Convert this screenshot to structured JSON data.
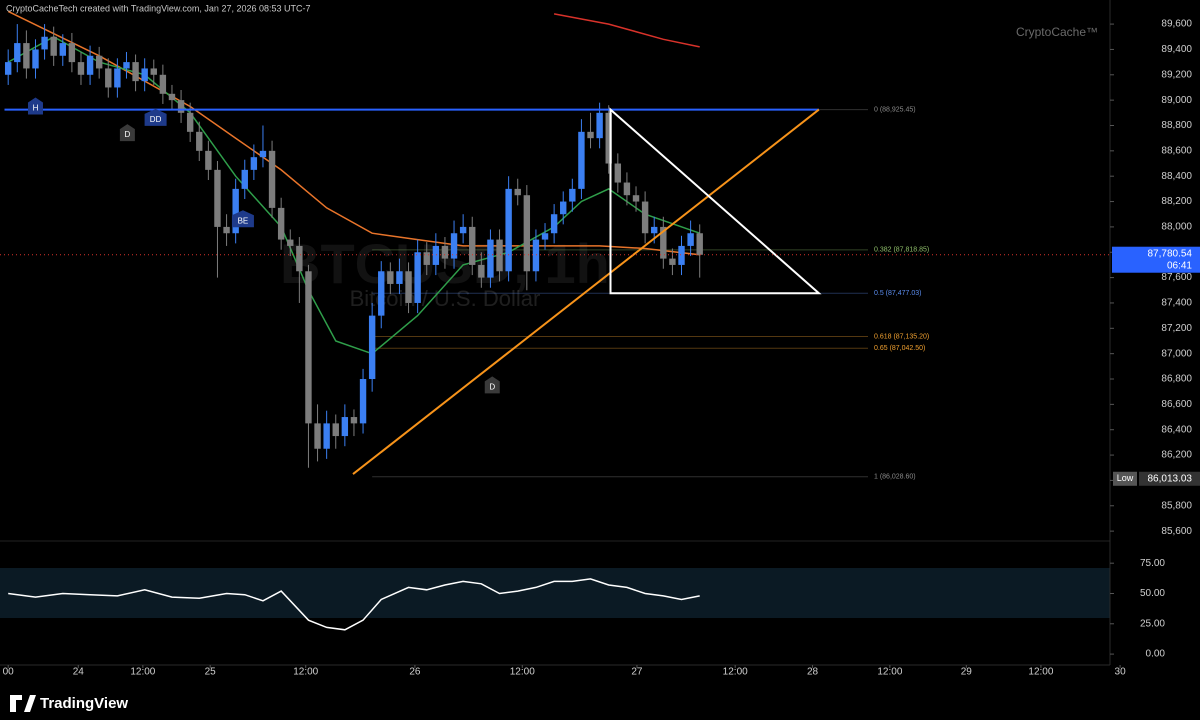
{
  "header": "CryptoCacheTech created with TradingView.com, Jan 27, 2026 08:53 UTC-7",
  "brand": "CryptoCache™",
  "watermark": "BTCUSD, 1h",
  "watermark_subtitle": "Bitcoin / U.S. Dollar",
  "footer_logo": "TradingView",
  "chart_data": [
    {
      "type": "candlestick",
      "up_color": "#3b7ff2",
      "down_color": "#7d7d7d",
      "xlim": [
        -0.9,
        123.4
      ],
      "ylim": [
        85530,
        89790
      ],
      "yticks": [
        {
          "value": 85600,
          "label": "85,600"
        },
        {
          "value": 85800,
          "label": "85,800"
        },
        {
          "value": 86000,
          "label": "86,000"
        },
        {
          "value": 86200,
          "label": "86,200"
        },
        {
          "value": 86400,
          "label": "86,400"
        },
        {
          "value": 86600,
          "label": "86,600"
        },
        {
          "value": 86800,
          "label": "86,800"
        },
        {
          "value": 87000,
          "label": "87,000"
        },
        {
          "value": 87200,
          "label": "87,200"
        },
        {
          "value": 87400,
          "label": "87,400"
        },
        {
          "value": 87600,
          "label": "87,600"
        },
        {
          "value": 87800,
          "label": "87,800"
        },
        {
          "value": 88000,
          "label": "88,000"
        },
        {
          "value": 88200,
          "label": "88,200"
        },
        {
          "value": 88400,
          "label": "88,400"
        },
        {
          "value": 88600,
          "label": "88,600"
        },
        {
          "value": 88800,
          "label": "88,800"
        },
        {
          "value": 89000,
          "label": "89,000"
        },
        {
          "value": 89200,
          "label": "89,200"
        },
        {
          "value": 89400,
          "label": "89,400"
        },
        {
          "value": 89600,
          "label": "89,600"
        }
      ],
      "open": [
        89200,
        89300,
        89450,
        89250,
        89400,
        89500,
        89350,
        89450,
        89300,
        89200,
        89350,
        89250,
        89100,
        89250,
        89300,
        89150,
        89250,
        89200,
        89050,
        89000,
        88900,
        88750,
        88600,
        88450,
        88000,
        87950,
        88300,
        88450,
        88550,
        88600,
        88150,
        87900,
        87850,
        87650,
        86450,
        86250,
        86450,
        86350,
        86500,
        86450,
        86800,
        87300,
        87650,
        87550,
        87650,
        87400,
        87800,
        87700,
        87850,
        87750,
        87950,
        88000,
        87700,
        87600,
        87900,
        87650,
        88300,
        88250,
        87650,
        87900,
        87950,
        88100,
        88200,
        88300,
        88750,
        88700,
        88900,
        88500,
        88350,
        88250,
        88200,
        87950,
        88000,
        87750,
        87700,
        87850,
        87950
      ],
      "high": [
        89400,
        89600,
        89550,
        89480,
        89600,
        89580,
        89520,
        89530,
        89380,
        89430,
        89420,
        89330,
        89330,
        89380,
        89360,
        89330,
        89320,
        89280,
        89120,
        89080,
        88980,
        88830,
        88680,
        88520,
        88100,
        88380,
        88530,
        88650,
        88800,
        88680,
        88230,
        87980,
        87920,
        87700,
        86600,
        86550,
        86520,
        86600,
        86560,
        86880,
        87400,
        87730,
        87720,
        87750,
        87720,
        87900,
        87880,
        87950,
        87920,
        88050,
        88100,
        88080,
        87800,
        87980,
        87980,
        88400,
        88380,
        88330,
        87980,
        88030,
        88180,
        88280,
        88380,
        88850,
        88900,
        88980,
        88960,
        88580,
        88430,
        88320,
        88280,
        88080,
        88080,
        87830,
        87930,
        88050,
        88020
      ],
      "low": [
        89120,
        89220,
        89170,
        89170,
        89320,
        89270,
        89270,
        89220,
        89120,
        89120,
        89170,
        89020,
        89020,
        89170,
        89070,
        89070,
        89120,
        88970,
        88920,
        88820,
        88670,
        88520,
        88370,
        87600,
        87850,
        87870,
        88220,
        88370,
        88470,
        88070,
        87820,
        87770,
        87400,
        86100,
        86150,
        86170,
        86250,
        86270,
        86350,
        86370,
        86700,
        87200,
        87470,
        87470,
        87320,
        87320,
        87620,
        87620,
        87670,
        87670,
        87870,
        87620,
        87520,
        87520,
        87570,
        87570,
        88170,
        87500,
        87570,
        87820,
        87870,
        88020,
        88120,
        88220,
        88620,
        88620,
        88420,
        88270,
        88170,
        88120,
        87870,
        87870,
        87670,
        87620,
        87620,
        87770,
        87600
      ],
      "close": [
        89300,
        89450,
        89250,
        89400,
        89500,
        89350,
        89450,
        89300,
        89200,
        89350,
        89250,
        89100,
        89250,
        89300,
        89150,
        89250,
        89200,
        89050,
        89000,
        88900,
        88750,
        88600,
        88450,
        88000,
        87950,
        88300,
        88450,
        88550,
        88600,
        88150,
        87900,
        87850,
        87650,
        86450,
        86250,
        86450,
        86350,
        86500,
        86450,
        86800,
        87300,
        87650,
        87550,
        87650,
        87400,
        87800,
        87700,
        87850,
        87750,
        87950,
        88000,
        87700,
        87600,
        87900,
        87650,
        88300,
        88250,
        87650,
        87900,
        87950,
        88100,
        88200,
        88300,
        88750,
        88700,
        88900,
        88500,
        88350,
        88250,
        88200,
        87950,
        88000,
        87750,
        87700,
        87850,
        87950,
        87780
      ],
      "lines": [
        {
          "color": "#e8742a",
          "x": [
            0,
            10,
            20,
            25,
            30,
            35,
            40,
            45,
            50,
            55,
            60,
            65,
            70,
            76
          ],
          "values": [
            89700,
            89350,
            88950,
            88700,
            88450,
            88150,
            87950,
            87900,
            87850,
            87850,
            87850,
            87850,
            87830,
            87780
          ]
        },
        {
          "color": "#2f9e4a",
          "x": [
            0,
            5,
            10,
            15,
            20,
            25,
            30,
            33,
            36,
            40,
            45,
            50,
            55,
            60,
            63,
            66,
            70,
            76
          ],
          "values": [
            89300,
            89500,
            89300,
            89200,
            88900,
            88400,
            88000,
            87500,
            87100,
            87000,
            87300,
            87700,
            87800,
            88000,
            88200,
            88300,
            88100,
            87950
          ]
        },
        {
          "color": "#d8322a",
          "x": [
            60,
            66,
            72,
            76
          ],
          "values": [
            89680,
            89600,
            89480,
            89420
          ]
        }
      ],
      "hline": {
        "color": "#2962ff",
        "x": [
          -0.4,
          89.1
        ],
        "values": [
          88925.45,
          88925.45
        ]
      },
      "trendline": {
        "color": "#f7931a",
        "x": [
          37.9,
          89.1
        ],
        "values": [
          86050,
          88925
        ]
      },
      "triangle": {
        "color": "#ffffff",
        "x": [
          66.2,
          89.1,
          66.2
        ],
        "values": [
          88925,
          87477,
          87477
        ]
      },
      "fib_levels": [
        {
          "label": "0 (88,925.45)",
          "value": 88925.45,
          "color": "#8a8a8a"
        },
        {
          "label": "0.382 (87,818.85)",
          "value": 87818.85,
          "color": "#8fbf6a"
        },
        {
          "label": "0.5 (87,477.03)",
          "value": 87477.03,
          "color": "#5b8def"
        },
        {
          "label": "0.618 (87,135.20)",
          "value": 87135.2,
          "color": "#f0a030"
        },
        {
          "label": "0.65 (87,042.50)",
          "value": 87042.5,
          "color": "#f0a030"
        },
        {
          "label": "1 (86,028.60)",
          "value": 86028.6,
          "color": "#8a8a8a"
        }
      ],
      "annotations": [
        {
          "label": "H",
          "x": 3,
          "value": 88950,
          "color": "#1e3a8a"
        },
        {
          "label": "DD",
          "x": 16.2,
          "value": 88860,
          "color": "#1e3a8a"
        },
        {
          "label": "D",
          "x": 13.1,
          "value": 88740,
          "color": "#3a3a3a"
        },
        {
          "label": "BE",
          "x": 25.8,
          "value": 88060,
          "color": "#1e3a8a"
        },
        {
          "label": "D",
          "x": 53.2,
          "value": 86750,
          "color": "#3a3a3a"
        }
      ],
      "last_price": {
        "value": 87780.54,
        "label": "87,780.54",
        "countdown": "06:41",
        "color": "#2962ff"
      },
      "low_badge": {
        "title": "Low",
        "value": 86013.03,
        "label": "86,013.03"
      }
    },
    {
      "type": "line",
      "xlim": [
        -0.9,
        123.4
      ],
      "ylim": [
        -9,
        90
      ],
      "yticks": [
        {
          "value": 0,
          "label": "0.00"
        },
        {
          "value": 25,
          "label": "25.00"
        },
        {
          "value": 50,
          "label": "50.00"
        },
        {
          "value": 75,
          "label": "75.00"
        }
      ],
      "xticks": [
        {
          "value": 0,
          "label": "00"
        },
        {
          "value": 7.7,
          "label": "24"
        },
        {
          "value": 14.8,
          "label": "12:00"
        },
        {
          "value": 22.2,
          "label": "25"
        },
        {
          "value": 32.7,
          "label": "12:00"
        },
        {
          "value": 44.7,
          "label": "26"
        },
        {
          "value": 56.5,
          "label": "12:00"
        },
        {
          "value": 69.1,
          "label": "27"
        },
        {
          "value": 79.9,
          "label": "12:00"
        },
        {
          "value": 88.4,
          "label": "28"
        },
        {
          "value": 96.9,
          "label": "12:00"
        },
        {
          "value": 105.3,
          "label": "29"
        },
        {
          "value": 113.5,
          "label": "12:00"
        },
        {
          "value": 122.2,
          "label": "30"
        }
      ],
      "series": [
        {
          "color": "#ffffff",
          "x": [
            0,
            3,
            6,
            9,
            12,
            15,
            18,
            21,
            24,
            26,
            28,
            30,
            33,
            35,
            37,
            39,
            41,
            44,
            46,
            48,
            50,
            52,
            54,
            56,
            58,
            60,
            62,
            64,
            66,
            68,
            70,
            72,
            74,
            76
          ],
          "values": [
            50,
            47,
            50,
            49,
            48,
            53,
            47,
            46,
            50,
            49,
            44,
            52,
            28,
            22,
            20,
            28,
            45,
            55,
            53,
            57,
            60,
            58,
            50,
            52,
            55,
            60,
            60,
            62,
            57,
            55,
            50,
            48,
            45,
            48
          ]
        }
      ]
    }
  ]
}
